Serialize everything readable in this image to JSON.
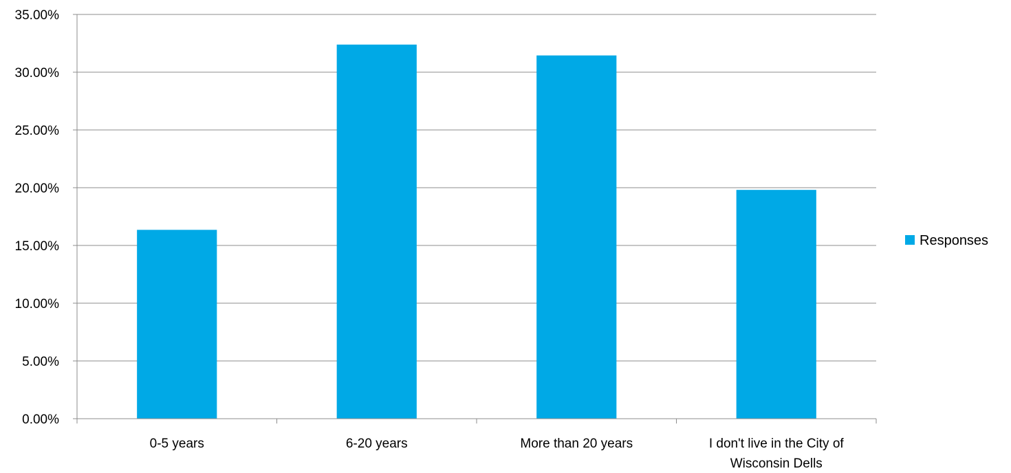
{
  "chart_data": {
    "type": "bar",
    "categories": [
      [
        "0-5 years"
      ],
      [
        "6-20 years"
      ],
      [
        "More than 20 years"
      ],
      [
        "I don't live in the City of",
        "Wisconsin Dells"
      ]
    ],
    "series": [
      {
        "name": "Responses",
        "color": "#00A9E6",
        "values": [
          16.35,
          32.39,
          31.45,
          19.81
        ]
      }
    ],
    "yticks": [
      "0.00%",
      "5.00%",
      "10.00%",
      "15.00%",
      "20.00%",
      "25.00%",
      "30.00%",
      "35.00%"
    ],
    "ylim": [
      0,
      35
    ],
    "grid": true,
    "legend_position": "right",
    "title": "",
    "xlabel": "",
    "ylabel": ""
  }
}
